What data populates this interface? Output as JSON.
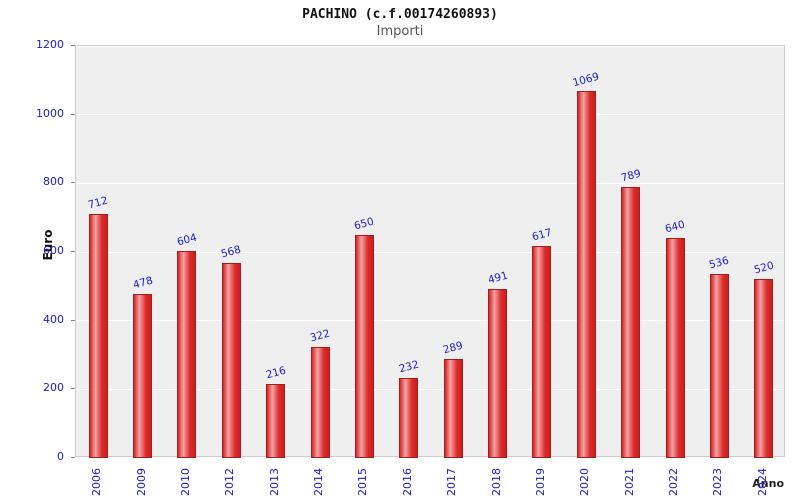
{
  "chart_data": {
    "type": "bar",
    "title": "PACHINO (c.f.00174260893)",
    "subtitle": "Importi",
    "xlabel": "Anno",
    "ylabel": "Euro",
    "categories": [
      "2006",
      "2009",
      "2010",
      "2012",
      "2013",
      "2014",
      "2015",
      "2016",
      "2017",
      "2018",
      "2019",
      "2020",
      "2021",
      "2022",
      "2023",
      "2024"
    ],
    "values": [
      712,
      478,
      604,
      568,
      216,
      322,
      650,
      232,
      289,
      491,
      617,
      1069,
      789,
      640,
      536,
      520
    ],
    "ylim": [
      0,
      1200
    ],
    "ytick_step": 200,
    "grid": true,
    "legend": "none",
    "colors": {
      "bar_fill": "#dd2a2a",
      "bar_highlight": "#f4a3a3",
      "bar_outline": "#a61b1b",
      "value_label": "#2020c0",
      "tick_label": "#2020c0",
      "plot_background": "#efefef",
      "gridline": "#ffffff",
      "title_text": "#111111",
      "subtitle_text": "#555555"
    }
  }
}
